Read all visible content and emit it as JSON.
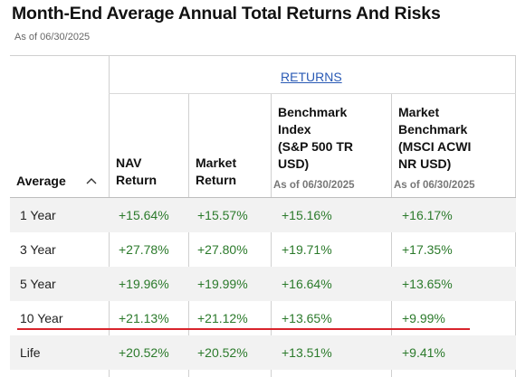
{
  "title": "Month-End Average Annual Total Returns And Risks",
  "as_of": "As of 06/30/2025",
  "table": {
    "group_header": "RETURNS",
    "columns": {
      "average": "Average",
      "nav_return": [
        "NAV",
        "Return"
      ],
      "market_return": [
        "Market",
        "Return"
      ],
      "benchmark_index": [
        "Benchmark",
        "Index",
        "(S&P 500 TR",
        "USD)"
      ],
      "benchmark_index_asof": "As of 06/30/2025",
      "market_benchmark": [
        "Market",
        "Benchmark",
        "(MSCI ACWI",
        "NR USD)"
      ],
      "market_benchmark_asof": "As of 06/30/2025"
    },
    "rows": [
      {
        "label": "1 Year",
        "nav": "+15.64%",
        "market": "+15.57%",
        "benchmark": "+15.16%",
        "market_benchmark": "+16.17%"
      },
      {
        "label": "3 Year",
        "nav": "+27.78%",
        "market": "+27.80%",
        "benchmark": "+19.71%",
        "market_benchmark": "+17.35%"
      },
      {
        "label": "5 Year",
        "nav": "+19.96%",
        "market": "+19.99%",
        "benchmark": "+16.64%",
        "market_benchmark": "+13.65%"
      },
      {
        "label": "10 Year",
        "nav": "+21.13%",
        "market": "+21.12%",
        "benchmark": "+13.65%",
        "market_benchmark": "+9.99%"
      },
      {
        "label": "Life",
        "nav": "+20.52%",
        "market": "+20.52%",
        "benchmark": "+13.51%",
        "market_benchmark": "+9.41%"
      }
    ]
  },
  "colors": {
    "positive": "#2b7a2b",
    "link": "#2a5ab5",
    "highlight": "#d8242c"
  }
}
